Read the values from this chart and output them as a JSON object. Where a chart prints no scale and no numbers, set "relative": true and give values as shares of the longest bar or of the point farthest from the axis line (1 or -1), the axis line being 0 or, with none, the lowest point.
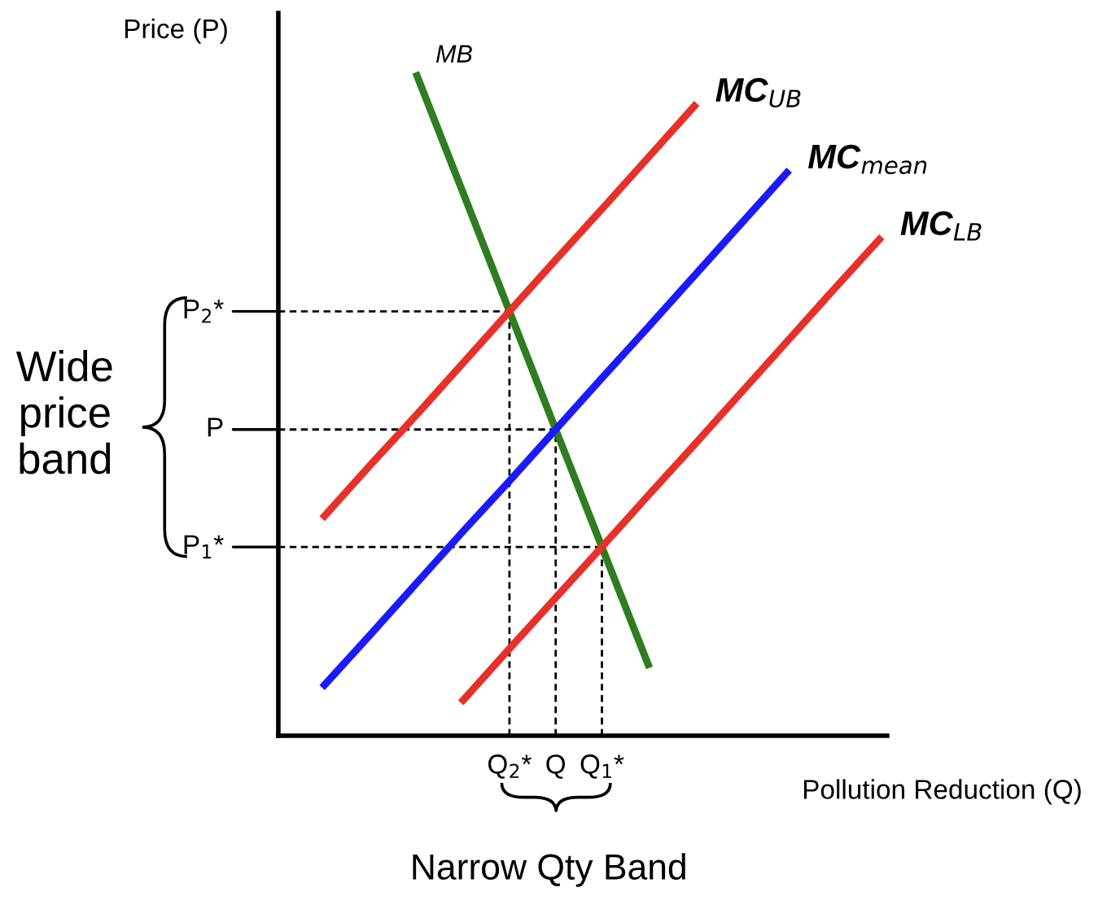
{
  "chart_data": {
    "type": "line",
    "relative": true,
    "xlabel": "Pollution Reduction (Q)",
    "ylabel": "Price (P)",
    "categories": [
      null,
      null,
      null,
      null,
      null,
      "Q$_{2}$*",
      "Q",
      "Q$_{1}$*",
      null,
      null,
      null,
      null,
      null,
      null
    ],
    "series": [
      {
        "name": "MB",
        "color": "#2e7d1e",
        "values": [
          null,
          null,
          null,
          1.0,
          0.822,
          0.643,
          0.464,
          0.286,
          0.108,
          null,
          null,
          null,
          null,
          null
        ]
      },
      {
        "name": "MC$_{UB}$",
        "color": "#e8302a",
        "values": [
          null,
          0.333,
          0.411,
          0.487,
          0.565,
          0.643,
          0.721,
          0.798,
          0.876,
          0.954,
          null,
          null,
          null,
          null
        ]
      },
      {
        "name": "MC$_{mean}$",
        "color": "#1a1aff",
        "values": [
          null,
          0.077,
          0.154,
          0.232,
          0.31,
          0.386,
          0.464,
          0.542,
          0.619,
          0.697,
          0.775,
          0.853,
          null,
          null
        ]
      },
      {
        "name": "MC$_{LB}$",
        "color": "#e8302a",
        "values": [
          null,
          null,
          null,
          null,
          0.054,
          0.132,
          0.209,
          0.286,
          0.364,
          0.441,
          0.519,
          0.597,
          0.675,
          0.752
        ]
      }
    ],
    "ref_lines": [
      {
        "axis": "y",
        "value": 0.643,
        "label": "P$_{2}$*",
        "color": "#000000",
        "line_style": "dashed"
      },
      {
        "axis": "y",
        "value": 0.464,
        "label": "P",
        "color": "#000000",
        "line_style": "dashed"
      },
      {
        "axis": "y",
        "value": 0.286,
        "label": "P$_{1}$*",
        "color": "#000000",
        "line_style": "dashed"
      },
      {
        "axis": "x",
        "value": "Q$_{2}$*",
        "color": "#000000",
        "line_style": "dashed"
      },
      {
        "axis": "x",
        "value": "Q",
        "color": "#000000",
        "line_style": "dashed"
      },
      {
        "axis": "x",
        "value": "Q$_{1}$*",
        "color": "#000000",
        "line_style": "dashed"
      }
    ],
    "legend": false,
    "marker": "none",
    "annotations": [
      "Wide\nprice\nband",
      "Narrow Qty Band"
    ]
  }
}
